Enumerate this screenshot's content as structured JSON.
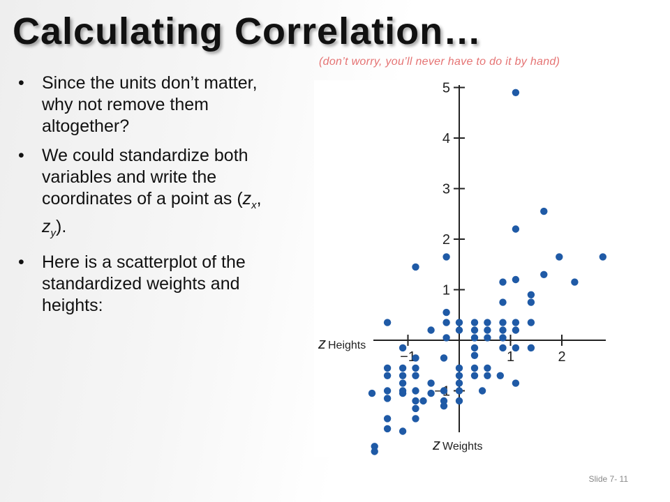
{
  "slide": {
    "title": "Calculating Correlation…",
    "note": "(don’t worry, you’ll never have to do it by hand)",
    "bullets": [
      {
        "text": "Since the units don’t matter, why not remove them altogether?"
      },
      {
        "pre": "We could standardize both variables and write the coordinates of a point as (",
        "zx": "z",
        "zx_sub": "x",
        "comma": ", ",
        "zy": "z",
        "zy_sub": "y",
        "post": ")."
      },
      {
        "text": "Here is a scatterplot of the standardized weights and heights:"
      }
    ],
    "bullet_symbol": "•",
    "footer": "Slide 7- 11"
  },
  "chart_data": {
    "type": "scatter",
    "xlabel": {
      "z": "z",
      "text": "Heights"
    },
    "ylabel": {
      "z": "z",
      "text": "Weights"
    },
    "xlim": [
      -1.5,
      3.0
    ],
    "ylim": [
      -2.2,
      5.0
    ],
    "xticks": [
      {
        "value": -1,
        "label": "−1"
      },
      {
        "value": 1,
        "label": "1"
      },
      {
        "value": 2,
        "label": "2"
      }
    ],
    "yticks": [
      {
        "value": -1,
        "label": "−1"
      },
      {
        "value": 1,
        "label": "1"
      },
      {
        "value": 2,
        "label": "2"
      },
      {
        "value": 3,
        "label": "3"
      },
      {
        "value": 4,
        "label": "4"
      },
      {
        "value": 5,
        "label": "5"
      }
    ],
    "grid": false,
    "point_color": "#1f5aa6",
    "points": [
      [
        1.1,
        4.9
      ],
      [
        1.65,
        2.55
      ],
      [
        1.1,
        2.2
      ],
      [
        1.95,
        1.65
      ],
      [
        2.8,
        1.65
      ],
      [
        -0.85,
        1.45
      ],
      [
        -0.25,
        1.65
      ],
      [
        1.1,
        1.2
      ],
      [
        0.85,
        1.15
      ],
      [
        1.65,
        1.3
      ],
      [
        2.25,
        1.15
      ],
      [
        1.4,
        0.9
      ],
      [
        0.85,
        0.75
      ],
      [
        1.4,
        0.75
      ],
      [
        -0.25,
        0.55
      ],
      [
        -0.25,
        0.35
      ],
      [
        -1.4,
        0.35
      ],
      [
        0.0,
        0.35
      ],
      [
        0.3,
        0.35
      ],
      [
        0.55,
        0.35
      ],
      [
        0.85,
        0.35
      ],
      [
        1.1,
        0.35
      ],
      [
        1.4,
        0.35
      ],
      [
        -0.55,
        0.2
      ],
      [
        0.0,
        0.2
      ],
      [
        0.3,
        0.2
      ],
      [
        0.55,
        0.2
      ],
      [
        0.85,
        0.2
      ],
      [
        1.1,
        0.2
      ],
      [
        -0.25,
        0.05
      ],
      [
        0.3,
        0.05
      ],
      [
        0.55,
        0.05
      ],
      [
        0.85,
        0.05
      ],
      [
        -1.1,
        -0.15
      ],
      [
        0.3,
        -0.15
      ],
      [
        0.85,
        -0.15
      ],
      [
        1.1,
        -0.15
      ],
      [
        1.4,
        -0.15
      ],
      [
        -0.85,
        -0.35
      ],
      [
        -0.3,
        -0.35
      ],
      [
        0.3,
        -0.3
      ],
      [
        -1.4,
        -0.55
      ],
      [
        -1.1,
        -0.55
      ],
      [
        -0.85,
        -0.55
      ],
      [
        0.0,
        -0.55
      ],
      [
        0.3,
        -0.55
      ],
      [
        0.55,
        -0.55
      ],
      [
        -1.4,
        -0.7
      ],
      [
        -1.1,
        -0.7
      ],
      [
        -0.85,
        -0.7
      ],
      [
        0.0,
        -0.7
      ],
      [
        0.3,
        -0.7
      ],
      [
        0.55,
        -0.7
      ],
      [
        0.8,
        -0.7
      ],
      [
        -1.1,
        -0.85
      ],
      [
        -0.55,
        -0.85
      ],
      [
        0.0,
        -0.85
      ],
      [
        1.1,
        -0.85
      ],
      [
        -1.4,
        -1.0
      ],
      [
        -1.1,
        -1.0
      ],
      [
        -0.85,
        -1.0
      ],
      [
        -0.3,
        -1.0
      ],
      [
        0.0,
        -1.0
      ],
      [
        0.45,
        -1.0
      ],
      [
        -1.7,
        -1.05
      ],
      [
        -1.1,
        -1.05
      ],
      [
        -0.55,
        -1.05
      ],
      [
        -1.4,
        -1.15
      ],
      [
        -0.85,
        -1.2
      ],
      [
        -0.7,
        -1.2
      ],
      [
        -0.3,
        -1.2
      ],
      [
        0.0,
        -1.2
      ],
      [
        -0.85,
        -1.35
      ],
      [
        -0.3,
        -1.3
      ],
      [
        -0.85,
        -1.55
      ],
      [
        -1.4,
        -1.55
      ],
      [
        -1.4,
        -1.75
      ],
      [
        -1.1,
        -1.8
      ],
      [
        -1.65,
        -2.1
      ],
      [
        -1.65,
        -2.2
      ]
    ]
  }
}
